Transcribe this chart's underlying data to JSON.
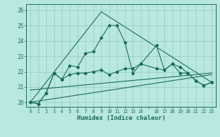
{
  "xlabel": "Humidex (Indice chaleur)",
  "xlim_min": -0.5,
  "xlim_max": 23.5,
  "ylim_min": 19.7,
  "ylim_max": 26.4,
  "ytick_values": [
    20,
    21,
    22,
    23,
    24,
    25,
    26
  ],
  "xtick_positions": [
    0,
    1,
    2,
    3,
    4,
    5,
    6,
    7,
    8,
    9,
    10,
    11,
    12,
    13,
    14,
    15,
    16,
    17,
    18,
    19,
    20,
    21,
    22,
    23
  ],
  "xtick_labels": [
    "0",
    "1",
    "2",
    "3",
    "4",
    "5",
    "6",
    "7",
    "8",
    "9",
    "10",
    "11",
    "12",
    "13",
    "14",
    "",
    "16",
    "17",
    "18",
    "19",
    "20",
    "21",
    "22",
    "23"
  ],
  "bg_color": "#b8e8e0",
  "grid_color": "#99cccc",
  "line_color": "#1a6b5a",
  "line1_x": [
    0,
    1,
    2,
    3,
    4,
    5,
    6,
    7,
    8,
    9,
    10,
    11,
    12,
    13,
    14,
    16,
    17,
    18,
    19,
    20,
    21,
    22,
    23
  ],
  "line1_y": [
    20.0,
    19.9,
    20.6,
    21.9,
    21.5,
    22.4,
    22.3,
    23.2,
    23.3,
    24.2,
    25.0,
    25.0,
    23.9,
    21.9,
    22.5,
    23.7,
    22.1,
    22.5,
    22.3,
    21.9,
    21.4,
    21.1,
    21.3
  ],
  "line2_x": [
    0,
    1,
    2,
    3,
    4,
    5,
    6,
    7,
    8,
    9,
    10,
    11,
    12,
    13,
    14,
    16,
    17,
    18,
    19,
    20,
    21,
    22,
    23
  ],
  "line2_y": [
    20.0,
    19.9,
    20.6,
    21.9,
    21.5,
    21.8,
    21.9,
    21.9,
    22.0,
    22.1,
    21.8,
    22.0,
    22.2,
    22.2,
    22.5,
    22.2,
    22.1,
    22.5,
    21.9,
    21.9,
    21.4,
    21.1,
    21.3
  ],
  "line3_x": [
    0,
    9,
    23
  ],
  "line3_y": [
    20.0,
    25.9,
    21.3
  ],
  "line4_x": [
    0,
    23
  ],
  "line4_y": [
    20.8,
    21.9
  ],
  "line5_x": [
    0,
    23
  ],
  "line5_y": [
    20.0,
    21.8
  ]
}
